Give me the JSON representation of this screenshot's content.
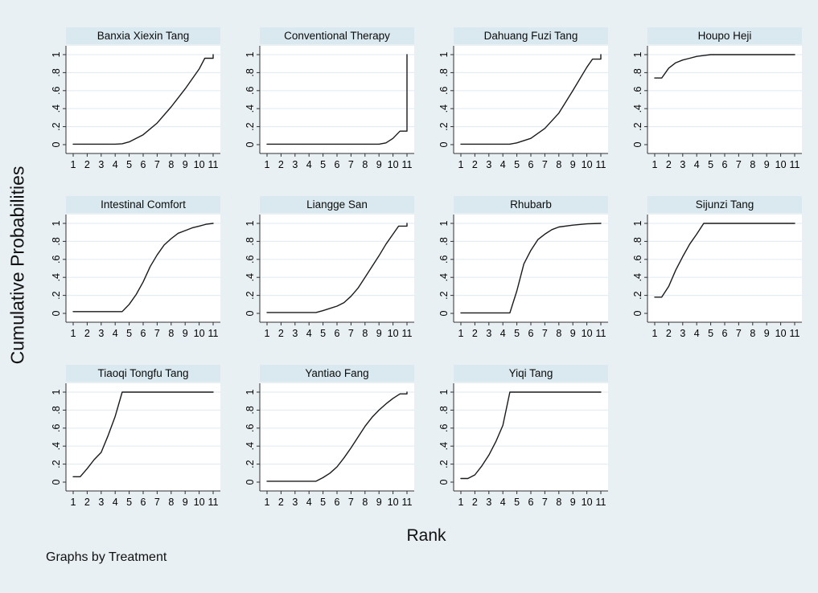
{
  "figure": {
    "ylabel": "Cumulative Probabilities",
    "xlabel": "Rank",
    "note": "Graphs by Treatment"
  },
  "colors": {
    "page_background": "#e8f0f3",
    "panel_title_background": "#d9e9ef",
    "plot_background": "#ffffff",
    "gridline": "#e3edf2",
    "axis": "#303030",
    "line": "#1a1a1a"
  },
  "chart_data": {
    "type": "line",
    "layout": "small-multiples, 4 columns x 3 rows, 11 panels",
    "title": "",
    "xlabel": "Rank",
    "ylabel": "Cumulative Probabilities",
    "note": "Graphs by Treatment",
    "x_range": [
      1,
      11
    ],
    "y_range": [
      0,
      1
    ],
    "grid": "horizontal gridlines at .2 .4 .6 .8 1",
    "x_tick_labels": [
      "1",
      "2",
      "3",
      "4",
      "5",
      "6",
      "7",
      "8",
      "9",
      "10",
      "11"
    ],
    "y_tick_labels": [
      "0",
      ".2",
      ".4",
      ".6",
      ".8",
      "1"
    ],
    "y_tick_values": [
      0,
      0.2,
      0.4,
      0.6,
      0.8,
      1
    ],
    "panels": [
      {
        "title": "Banxia Xiexin Tang",
        "points": [
          [
            1,
            0.005
          ],
          [
            4,
            0.005
          ],
          [
            4.5,
            0.01
          ],
          [
            5,
            0.03
          ],
          [
            6,
            0.11
          ],
          [
            7,
            0.24
          ],
          [
            8,
            0.42
          ],
          [
            9,
            0.62
          ],
          [
            10,
            0.84
          ],
          [
            10.4,
            0.96
          ],
          [
            11,
            0.96
          ],
          [
            11,
            1
          ]
        ]
      },
      {
        "title": "Conventional Therapy",
        "points": [
          [
            1,
            0.005
          ],
          [
            9,
            0.005
          ],
          [
            9.5,
            0.02
          ],
          [
            10,
            0.07
          ],
          [
            10.5,
            0.15
          ],
          [
            11,
            0.15
          ],
          [
            11,
            1
          ]
        ]
      },
      {
        "title": "Dahuang Fuzi Tang",
        "points": [
          [
            1,
            0.005
          ],
          [
            4.5,
            0.005
          ],
          [
            5,
            0.02
          ],
          [
            6,
            0.07
          ],
          [
            7,
            0.18
          ],
          [
            8,
            0.35
          ],
          [
            9,
            0.6
          ],
          [
            10,
            0.86
          ],
          [
            10.4,
            0.95
          ],
          [
            11,
            0.95
          ],
          [
            11,
            1
          ]
        ]
      },
      {
        "title": "Houpo Heji",
        "points": [
          [
            1,
            0.74
          ],
          [
            1.5,
            0.74
          ],
          [
            2,
            0.85
          ],
          [
            2.5,
            0.91
          ],
          [
            3,
            0.94
          ],
          [
            3.5,
            0.96
          ],
          [
            4,
            0.98
          ],
          [
            4.5,
            0.99
          ],
          [
            5,
            1
          ],
          [
            11,
            1
          ]
        ]
      },
      {
        "title": "Intestinal Comfort",
        "points": [
          [
            1,
            0.02
          ],
          [
            4.5,
            0.02
          ],
          [
            5,
            0.1
          ],
          [
            5.5,
            0.21
          ],
          [
            6,
            0.35
          ],
          [
            6.5,
            0.52
          ],
          [
            7,
            0.65
          ],
          [
            7.5,
            0.76
          ],
          [
            8,
            0.83
          ],
          [
            8.5,
            0.89
          ],
          [
            9,
            0.92
          ],
          [
            9.5,
            0.95
          ],
          [
            10,
            0.97
          ],
          [
            10.5,
            0.99
          ],
          [
            11,
            1
          ]
        ]
      },
      {
        "title": "Liangge San",
        "points": [
          [
            1,
            0.01
          ],
          [
            4.5,
            0.01
          ],
          [
            5,
            0.03
          ],
          [
            6,
            0.08
          ],
          [
            6.5,
            0.12
          ],
          [
            7,
            0.19
          ],
          [
            7.5,
            0.28
          ],
          [
            8,
            0.4
          ],
          [
            8.5,
            0.52
          ],
          [
            9,
            0.64
          ],
          [
            9.5,
            0.77
          ],
          [
            10,
            0.88
          ],
          [
            10.4,
            0.97
          ],
          [
            11,
            0.97
          ],
          [
            11,
            1
          ]
        ]
      },
      {
        "title": "Rhubarb",
        "points": [
          [
            1,
            0.005
          ],
          [
            4.5,
            0.005
          ],
          [
            5,
            0.25
          ],
          [
            5.5,
            0.55
          ],
          [
            6,
            0.7
          ],
          [
            6.5,
            0.82
          ],
          [
            7,
            0.88
          ],
          [
            7.5,
            0.93
          ],
          [
            8,
            0.96
          ],
          [
            9,
            0.98
          ],
          [
            10,
            0.995
          ],
          [
            11,
            1
          ]
        ]
      },
      {
        "title": "Sijunzi Tang",
        "points": [
          [
            1,
            0.18
          ],
          [
            1.5,
            0.18
          ],
          [
            2,
            0.3
          ],
          [
            2.5,
            0.48
          ],
          [
            3,
            0.63
          ],
          [
            3.5,
            0.77
          ],
          [
            4,
            0.88
          ],
          [
            4.5,
            1
          ],
          [
            11,
            1
          ]
        ]
      },
      {
        "title": "Tiaoqi Tongfu Tang",
        "points": [
          [
            1,
            0.06
          ],
          [
            1.5,
            0.06
          ],
          [
            2,
            0.15
          ],
          [
            2.5,
            0.25
          ],
          [
            3,
            0.33
          ],
          [
            3.5,
            0.52
          ],
          [
            4,
            0.73
          ],
          [
            4.5,
            1
          ],
          [
            11,
            1
          ]
        ]
      },
      {
        "title": "Yantiao Fang",
        "points": [
          [
            1,
            0.01
          ],
          [
            4.5,
            0.01
          ],
          [
            5,
            0.05
          ],
          [
            5.5,
            0.1
          ],
          [
            6,
            0.17
          ],
          [
            6.5,
            0.27
          ],
          [
            7,
            0.38
          ],
          [
            7.5,
            0.5
          ],
          [
            8,
            0.62
          ],
          [
            8.5,
            0.72
          ],
          [
            9,
            0.8
          ],
          [
            9.5,
            0.87
          ],
          [
            10,
            0.93
          ],
          [
            10.5,
            0.98
          ],
          [
            11,
            0.98
          ],
          [
            11,
            1
          ]
        ]
      },
      {
        "title": "Yiqi Tang",
        "points": [
          [
            1,
            0.04
          ],
          [
            1.5,
            0.04
          ],
          [
            2,
            0.08
          ],
          [
            2.5,
            0.18
          ],
          [
            3,
            0.3
          ],
          [
            3.5,
            0.45
          ],
          [
            4,
            0.63
          ],
          [
            4.5,
            1
          ],
          [
            11,
            1
          ]
        ]
      }
    ]
  }
}
